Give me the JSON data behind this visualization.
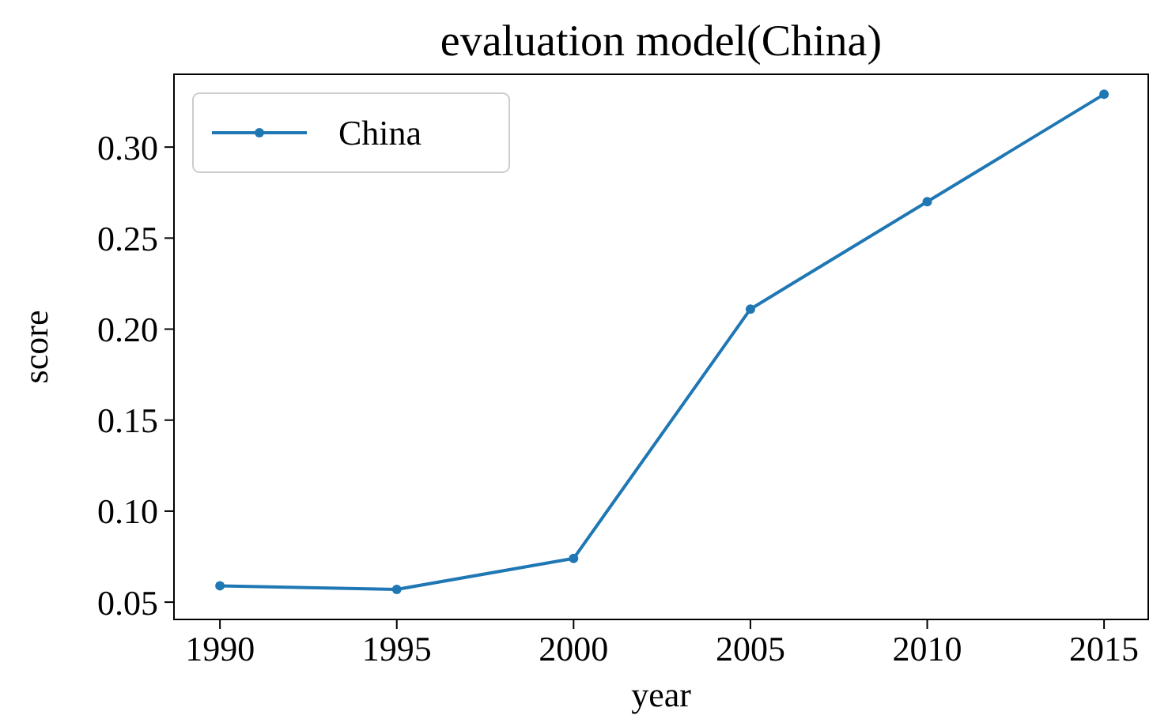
{
  "chart_data": {
    "type": "line",
    "title": "evaluation model(China)",
    "xlabel": "year",
    "ylabel": "score",
    "x": [
      1990,
      1995,
      2000,
      2005,
      2010,
      2015
    ],
    "series": [
      {
        "name": "China",
        "color": "#1f77b4",
        "values": [
          0.059,
          0.057,
          0.074,
          0.211,
          0.27,
          0.329
        ]
      }
    ],
    "xlim": [
      1988.7,
      2016.25
    ],
    "ylim": [
      0.0405,
      0.34
    ],
    "xticks": [
      1990,
      1995,
      2000,
      2005,
      2010,
      2015
    ],
    "yticks": [
      {
        "value": 0.05,
        "label": "0.05"
      },
      {
        "value": 0.1,
        "label": "0.10"
      },
      {
        "value": 0.15,
        "label": "0.15"
      },
      {
        "value": 0.2,
        "label": "0.20"
      },
      {
        "value": 0.25,
        "label": "0.25"
      },
      {
        "value": 0.3,
        "label": "0.30"
      }
    ],
    "legend": "top left",
    "marker": "circle",
    "grid": false
  }
}
